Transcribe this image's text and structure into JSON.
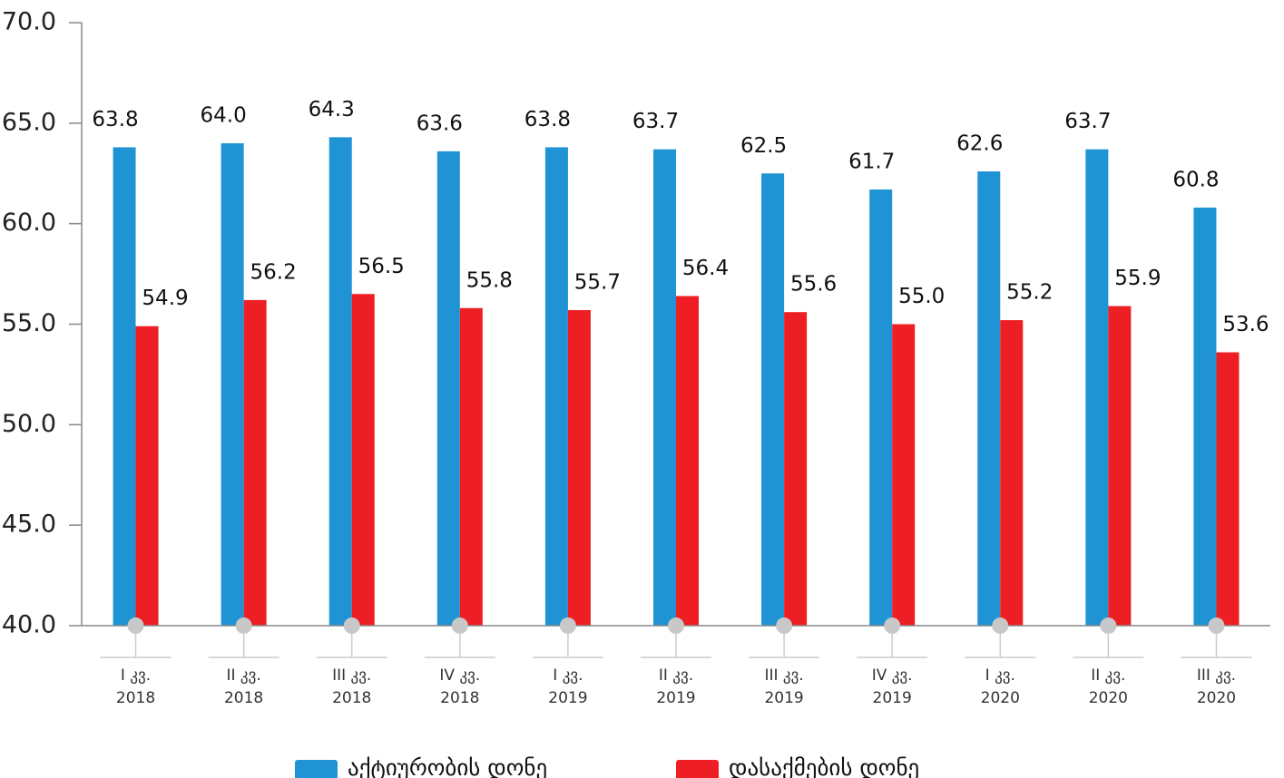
{
  "chart_data": {
    "type": "bar",
    "categories": [
      "I კვ.\n2018",
      "II კვ.\n2018",
      "III კვ.\n2018",
      "IV კვ.\n2018",
      "I კვ.\n2019",
      "II კვ.\n2019",
      "III კვ.\n2019",
      "IV კვ.\n2019",
      "I კვ.\n2020",
      "II კვ.\n2020",
      "III კვ.\n2020"
    ],
    "series": [
      {
        "name": "აქტიურობის დონე",
        "color": "#1f93d3",
        "values": [
          63.8,
          64.0,
          64.3,
          63.6,
          63.8,
          63.7,
          62.5,
          61.7,
          62.6,
          63.7,
          60.8
        ],
        "value_labels": [
          "63.8",
          "64.0",
          "64.3",
          "63.6",
          "63.8",
          "63.7",
          "62.5",
          "61.7",
          "62.6",
          "63.7",
          "60.8"
        ]
      },
      {
        "name": "დასაქმების დონე",
        "color": "#ed1f24",
        "values": [
          54.9,
          56.2,
          56.5,
          55.8,
          55.7,
          56.4,
          55.6,
          55.0,
          55.2,
          55.9,
          53.6
        ],
        "value_labels": [
          "54.9",
          "56.2",
          "56.5",
          "55.8",
          "55.7",
          "56.4",
          "55.6",
          "55.0",
          "55.2",
          "55.9",
          "53.6"
        ]
      }
    ],
    "ylim": [
      40,
      70
    ],
    "yticks": [
      {
        "value": 40,
        "label": "40.0"
      },
      {
        "value": 45,
        "label": "45.0"
      },
      {
        "value": 50,
        "label": "50.0"
      },
      {
        "value": 55,
        "label": "55.0"
      },
      {
        "value": 60,
        "label": "60.0"
      },
      {
        "value": 65,
        "label": "65.0"
      },
      {
        "value": 70,
        "label": "70.0"
      }
    ],
    "legend": "bottom"
  }
}
